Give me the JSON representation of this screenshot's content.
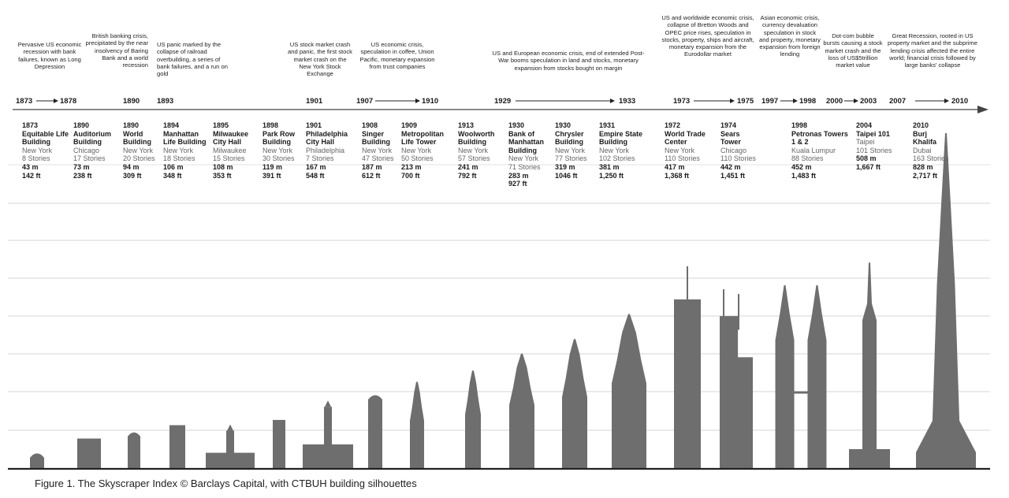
{
  "crises": [
    {
      "text": "Pervasive US economic recession with bank failures, known as Long Depression"
    },
    {
      "text": "British banking crisis, precipitated by the near insolvency of Baring Bank and a world recession"
    },
    {
      "text": "US panic marked by the collapse of railroad overbuilding, a series of bank failures, and a run on gold"
    },
    {
      "text": "US stock market crash and panic, the first stock market crash on the New York Stock Exchange"
    },
    {
      "text": "US economic crisis, speculation in coffee, Union Pacific, monetary expansion from trust companies"
    },
    {
      "text": "US and European economic crisis, end of extended Post-War booms speculation in land and stocks, monetary expansion from stocks bought on margin"
    },
    {
      "text": "US and worldwide economic crisis, collapse of Bretton Woods and OPEC price rises, speculation in stocks, property, ships and aircraft, monetary expansion from the Eurodollar market"
    },
    {
      "text": "Asian economic crisis, currency devaluation speculation in stock and property, monetary expansion from foreign lending"
    },
    {
      "text": "Dot-com bubble bursts causing a stock market crash and the loss of US$5trillion market value"
    },
    {
      "text": "Great Recession, rooted in US property market and the subprime lending crisis affected the entire world; financial crisis followed by large banks' collapse"
    }
  ],
  "periods": [
    {
      "start": "1873",
      "end": "1878"
    },
    {
      "start": "1890",
      "end": ""
    },
    {
      "start": "1893",
      "end": ""
    },
    {
      "start": "1901",
      "end": ""
    },
    {
      "start": "1907",
      "end": "1910"
    },
    {
      "start": "1929",
      "end": "1933"
    },
    {
      "start": "1973",
      "end": "1975"
    },
    {
      "start": "1997",
      "end": "1998"
    },
    {
      "start": "2000",
      "end": "2003"
    },
    {
      "start": "2007",
      "end": "2010"
    }
  ],
  "buildings": [
    {
      "year": "1873",
      "name": "Equitable Life Building",
      "city": "New York",
      "stories": "8 Stories",
      "height_m": "43 m",
      "height_ft": "142 ft",
      "m": 43
    },
    {
      "year": "1890",
      "name": "Auditorium Building",
      "city": "Chicago",
      "stories": "17 Stories",
      "height_m": "73 m",
      "height_ft": "238 ft",
      "m": 73
    },
    {
      "year": "1890",
      "name": "World Building",
      "city": "New York",
      "stories": "20 Stories",
      "height_m": "94 m",
      "height_ft": "309 ft",
      "m": 94
    },
    {
      "year": "1894",
      "name": "Manhattan Life Building",
      "city": "New York",
      "stories": "18 Stories",
      "height_m": "106 m",
      "height_ft": "348 ft",
      "m": 106
    },
    {
      "year": "1895",
      "name": "Milwaukee City Hall",
      "city": "Milwaukee",
      "stories": "15 Stories",
      "height_m": "108 m",
      "height_ft": "353 ft",
      "m": 108
    },
    {
      "year": "1898",
      "name": "Park Row Building",
      "city": "New York",
      "stories": "30 Stories",
      "height_m": "119 m",
      "height_ft": "391 ft",
      "m": 119
    },
    {
      "year": "1901",
      "name": "Philadelphia City Hall",
      "city": "Philadelphia",
      "stories": "7 Stories",
      "height_m": "167 m",
      "height_ft": "548 ft",
      "m": 167
    },
    {
      "year": "1908",
      "name": "Singer Building",
      "city": "New York",
      "stories": "47 Stories",
      "height_m": "187 m",
      "height_ft": "612 ft",
      "m": 187
    },
    {
      "year": "1909",
      "name": "Metropolitan Life Tower",
      "city": "New York",
      "stories": "50 Stories",
      "height_m": "213 m",
      "height_ft": "700 ft",
      "m": 213
    },
    {
      "year": "1913",
      "name": "Woolworth Building",
      "city": "New York",
      "stories": "57 Stories",
      "height_m": "241 m",
      "height_ft": "792 ft",
      "m": 241
    },
    {
      "year": "1930",
      "name": "Bank of Manhattan Building",
      "city": "New York",
      "stories": "71 Stories",
      "height_m": "283 m",
      "height_ft": "927 ft",
      "m": 283
    },
    {
      "year": "1930",
      "name": "Chrysler Building",
      "city": "New York",
      "stories": "77 Stories",
      "height_m": "319 m",
      "height_ft": "1046 ft",
      "m": 319
    },
    {
      "year": "1931",
      "name": "Empire State Building",
      "city": "New York",
      "stories": "102 Stories",
      "height_m": "381 m",
      "height_ft": "1,250 ft",
      "m": 381
    },
    {
      "year": "1972",
      "name": "World Trade Center",
      "city": "New York",
      "stories": "110 Stories",
      "height_m": "417 m",
      "height_ft": "1,368 ft",
      "m": 417
    },
    {
      "year": "1974",
      "name": "Sears Tower",
      "city": "Chicago",
      "stories": "110 Stories",
      "height_m": "442 m",
      "height_ft": "1,451 ft",
      "m": 442
    },
    {
      "year": "1998",
      "name": "Petronas Towers 1 & 2",
      "city": "Kuala Lumpur",
      "stories": "88 Stories",
      "height_m": "452 m",
      "height_ft": "1,483 ft",
      "m": 452
    },
    {
      "year": "2004",
      "name": "Taipei 101",
      "city": "Taipei",
      "stories": "101 Stories",
      "height_m": "508 m",
      "height_ft": "1,667 ft",
      "m": 508
    },
    {
      "year": "2010",
      "name": "Burj Khalifa",
      "city": "Dubai",
      "stories": "163 Stories",
      "height_m": "828 m",
      "height_ft": "2,717 ft",
      "m": 828
    }
  ],
  "caption": "Figure 1. The Skyscraper Index © Barclays Capital, with CTBUH building silhouettes",
  "colors": {
    "silhouette": "#6e6e6e",
    "grid": "#d4d4d4",
    "text": "#1a1a1a"
  }
}
